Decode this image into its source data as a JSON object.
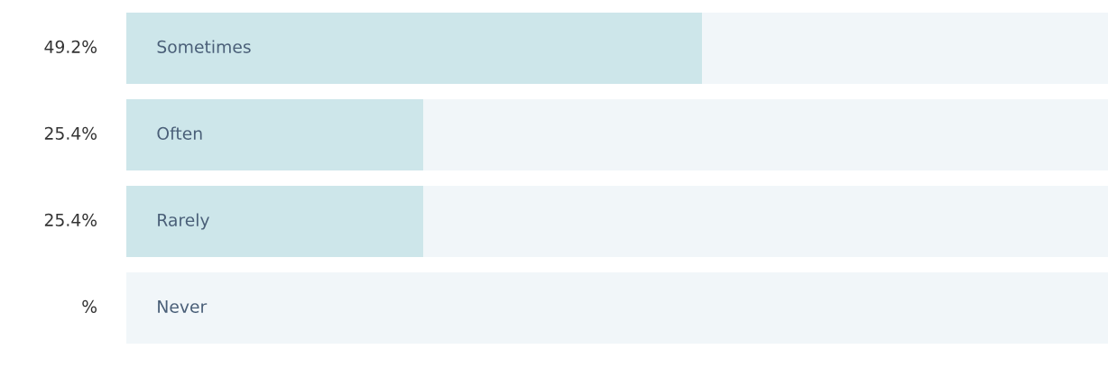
{
  "chart_data": {
    "type": "bar",
    "orientation": "horizontal",
    "stacked": true,
    "categories": [
      "Sometimes",
      "Often",
      "Rarely",
      "Never"
    ],
    "series": [
      {
        "color": "#cde6ea",
        "values": [
          49.2,
          25.4,
          25.4,
          0
        ],
        "value_labels": [
          "49.2%",
          "25.4%",
          "25.4%",
          "%"
        ]
      },
      {
        "color": "#f1f6f9",
        "values": [
          34.7,
          58.5,
          58.5,
          83.9
        ]
      }
    ],
    "xlim": [
      0,
      83.9
    ]
  }
}
